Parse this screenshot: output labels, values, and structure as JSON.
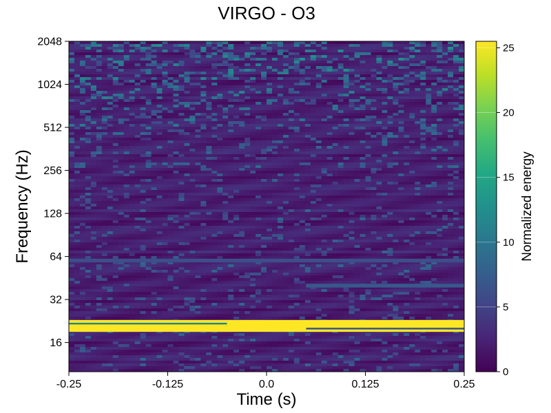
{
  "chart_data": {
    "type": "heatmap",
    "title": "VIRGO - O3",
    "xlabel": "Time (s)",
    "ylabel": "Frequency (Hz)",
    "xlim": [
      -0.25,
      0.25
    ],
    "ylim": [
      10,
      2048
    ],
    "yscale": "log2",
    "xticks": [
      "-0.25",
      "-0.125",
      "0.0",
      "0.125",
      "0.25"
    ],
    "xtick_values": [
      -0.25,
      -0.125,
      0.0,
      0.125,
      0.25
    ],
    "yticks": [
      "16",
      "32",
      "64",
      "128",
      "256",
      "512",
      "1024",
      "2048"
    ],
    "ytick_values": [
      16,
      32,
      64,
      128,
      256,
      512,
      1024,
      2048
    ],
    "colorscale": "viridis",
    "colorbar": {
      "label": "Normalized energy",
      "range": [
        0,
        25.5
      ],
      "ticks": [
        "0",
        "5",
        "10",
        "15",
        "20",
        "25"
      ],
      "tick_values": [
        0,
        5,
        10,
        15,
        20,
        25
      ]
    },
    "features": [
      {
        "frequency_hz": [
          19,
          23
        ],
        "time_s": [
          -0.25,
          0.25
        ],
        "energy": 25.5,
        "note": "bright band"
      },
      {
        "frequency_hz": 60,
        "time_s": [
          -0.25,
          0.25
        ],
        "energy": 6
      },
      {
        "frequency_hz": 40,
        "time_s": [
          0.05,
          0.25
        ],
        "energy": 7
      }
    ]
  }
}
